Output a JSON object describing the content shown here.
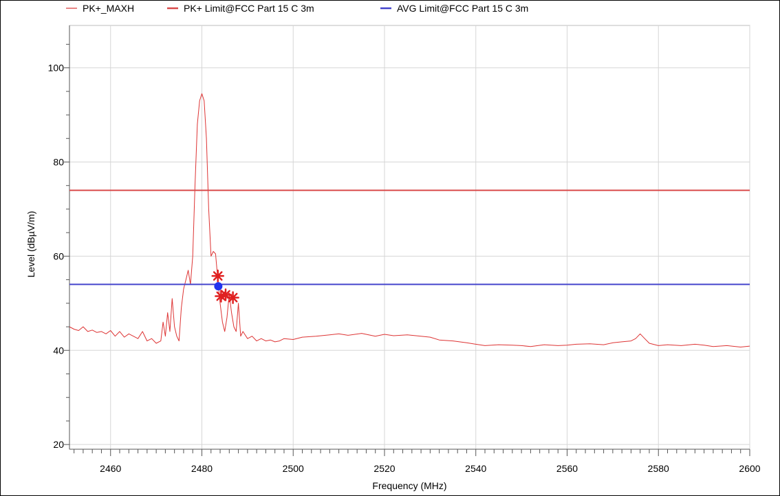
{
  "chart_data": {
    "type": "line",
    "xlabel": "Frequency (MHz)",
    "ylabel": "Level (dBµV/m)",
    "xlim": [
      2451,
      2600
    ],
    "ylim": [
      19,
      109
    ],
    "x_ticks": [
      2460,
      2480,
      2500,
      2520,
      2540,
      2560,
      2580,
      2600
    ],
    "y_ticks": [
      20,
      40,
      60,
      80,
      100
    ],
    "grid": true,
    "legend_position": "top",
    "legend": [
      {
        "label": "PK+_MAXH",
        "color": "#e05a5a",
        "style": "thin"
      },
      {
        "label": "PK+ Limit@FCC Part 15 C  3m",
        "color": "#d94a4a",
        "style": "thick"
      },
      {
        "label": "AVG Limit@FCC Part 15 C  3m",
        "color": "#4444cc",
        "style": "thick"
      }
    ],
    "series": [
      {
        "name": "PK+_MAXH",
        "color": "#dd3333",
        "x": [
          2451,
          2452,
          2453,
          2454,
          2455,
          2456,
          2457,
          2458,
          2459,
          2460,
          2461,
          2462,
          2463,
          2464,
          2465,
          2466,
          2467,
          2468,
          2469,
          2470,
          2471,
          2471.5,
          2472,
          2472.5,
          2473,
          2473.5,
          2474,
          2474.5,
          2475,
          2475.5,
          2476,
          2476.5,
          2477,
          2477.5,
          2478,
          2478.5,
          2479,
          2479.5,
          2480,
          2480.5,
          2481,
          2481.5,
          2482,
          2482.5,
          2483,
          2483.5,
          2484,
          2484.5,
          2485,
          2485.5,
          2486,
          2486.5,
          2487,
          2487.5,
          2488,
          2488.5,
          2489,
          2490,
          2491,
          2492,
          2493,
          2494,
          2495,
          2496,
          2497,
          2498,
          2500,
          2502,
          2505,
          2508,
          2510,
          2512,
          2515,
          2518,
          2520,
          2522,
          2525,
          2528,
          2530,
          2532,
          2535,
          2538,
          2540,
          2542,
          2545,
          2548,
          2550,
          2552,
          2555,
          2558,
          2560,
          2562,
          2565,
          2568,
          2570,
          2572,
          2574,
          2575,
          2576,
          2577,
          2578,
          2580,
          2582,
          2585,
          2588,
          2590,
          2592,
          2595,
          2598,
          2600
        ],
        "y": [
          45,
          44.5,
          44.2,
          45,
          44,
          44.3,
          43.8,
          44,
          43.5,
          44.2,
          43,
          44,
          42.8,
          43.5,
          43,
          42.5,
          44,
          42,
          42.5,
          41.5,
          42,
          46,
          43,
          48,
          44,
          51,
          45,
          43,
          42,
          49,
          53,
          55,
          57,
          54,
          60,
          75,
          88,
          93,
          94.5,
          93,
          85,
          70,
          60,
          61,
          60.5,
          55,
          50,
          46,
          44,
          47,
          52,
          48,
          45,
          44,
          50,
          43,
          44,
          42.5,
          43,
          42,
          42.5,
          42,
          42.2,
          41.8,
          42,
          42.5,
          42.3,
          42.8,
          43,
          43.3,
          43.5,
          43.2,
          43.6,
          43,
          43.4,
          43.1,
          43.3,
          43,
          42.8,
          42.2,
          42,
          41.6,
          41.3,
          41,
          41.2,
          41.1,
          41,
          40.8,
          41.2,
          41,
          41.1,
          41.3,
          41.4,
          41.2,
          41.6,
          41.8,
          42,
          42.5,
          43.5,
          42.5,
          41.5,
          41,
          41.2,
          41,
          41.3,
          41.1,
          40.8,
          41,
          40.7,
          40.9
        ]
      },
      {
        "name": "PK+ Limit@FCC Part 15 C  3m",
        "color": "#d94a4a",
        "x": [
          2451,
          2600
        ],
        "y": [
          74,
          74
        ]
      },
      {
        "name": "AVG Limit@FCC Part 15 C  3m",
        "color": "#4444cc",
        "x": [
          2451,
          2600
        ],
        "y": [
          54,
          54
        ]
      }
    ],
    "markers": [
      {
        "type": "asterisk",
        "color": "#e02020",
        "x": 2483.5,
        "y": 55.8
      },
      {
        "type": "asterisk",
        "color": "#e02020",
        "x": 2484.2,
        "y": 51.5
      },
      {
        "type": "asterisk",
        "color": "#e02020",
        "x": 2485.2,
        "y": 51.8
      },
      {
        "type": "asterisk",
        "color": "#e02020",
        "x": 2486.8,
        "y": 51.2
      },
      {
        "type": "dot",
        "color": "#2233ee",
        "x": 2483.6,
        "y": 53.6
      }
    ]
  }
}
